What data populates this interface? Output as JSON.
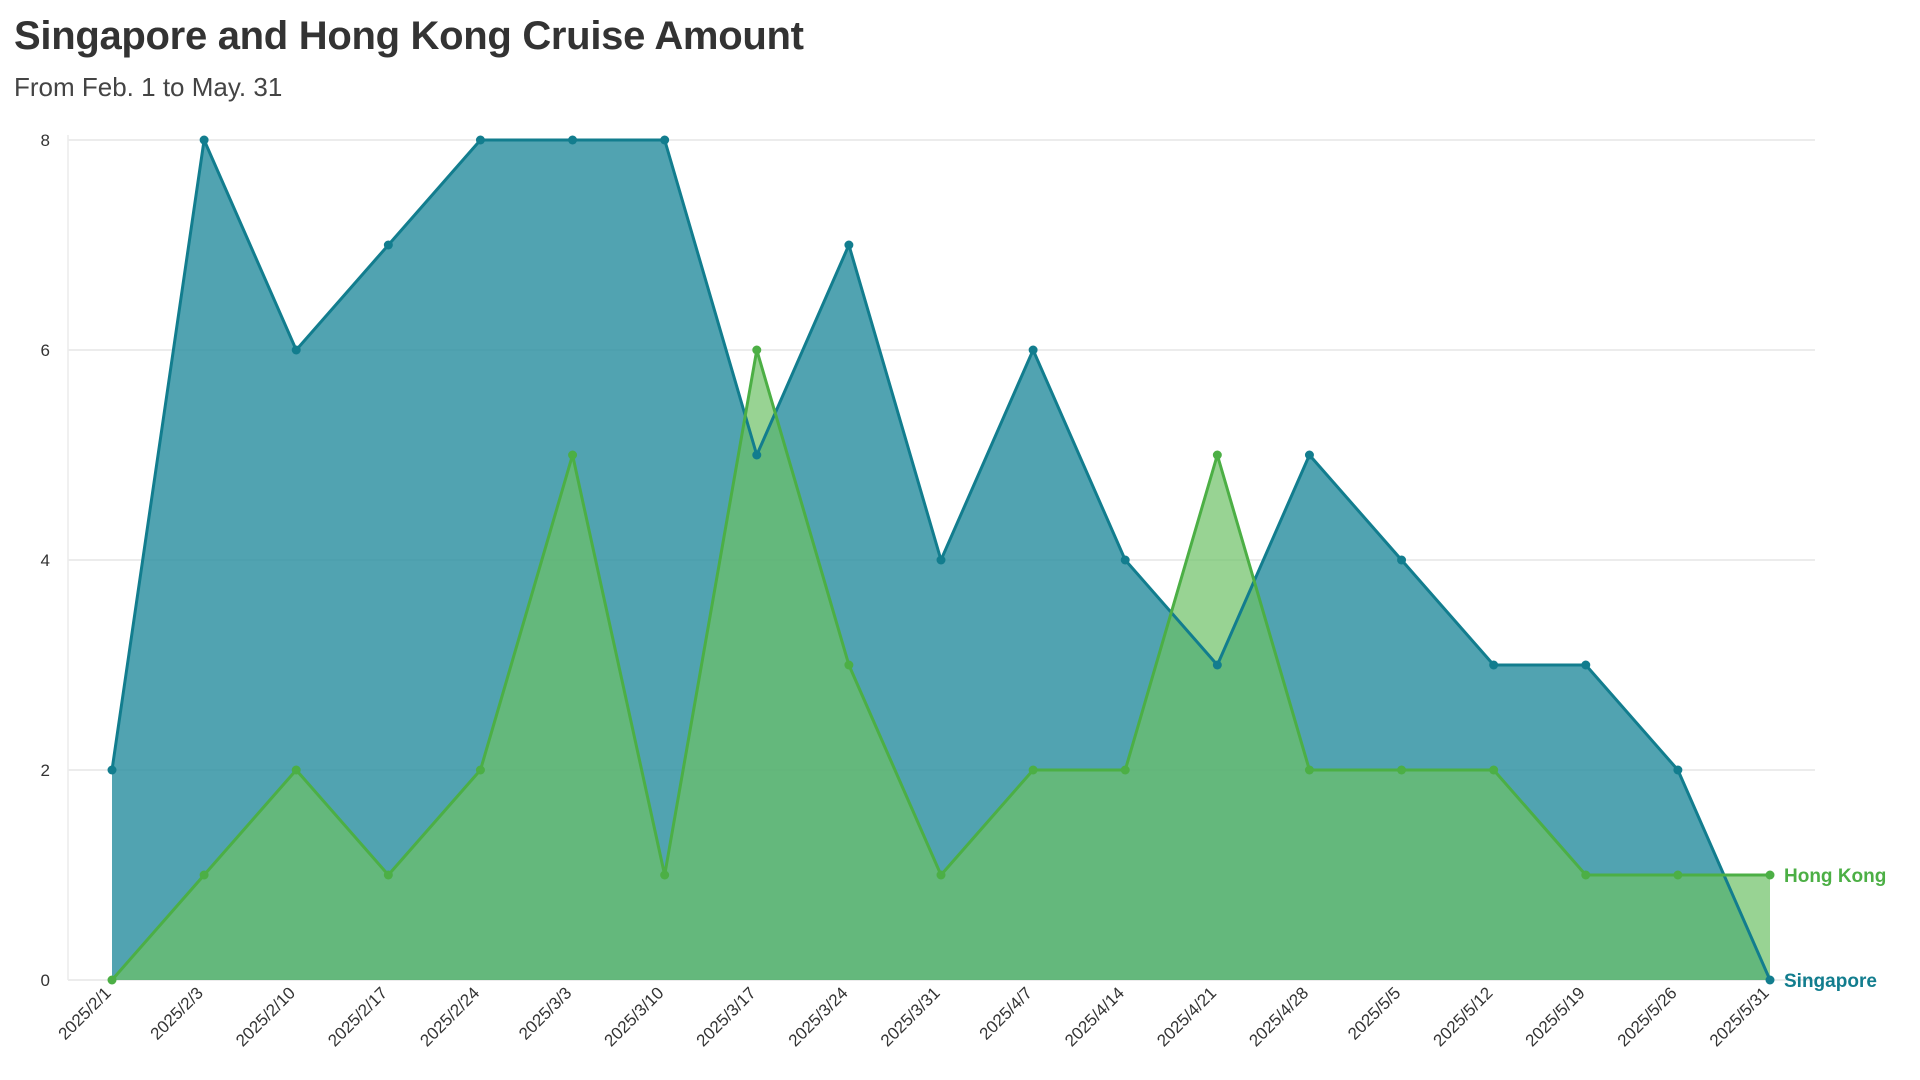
{
  "chart_data": {
    "type": "area",
    "title": "Singapore and Hong Kong Cruise Amount",
    "subtitle": "From Feb. 1 to May. 31",
    "xlabel": "",
    "ylabel": "",
    "categories": [
      "2025/2/1",
      "2025/2/3",
      "2025/2/10",
      "2025/2/17",
      "2025/2/24",
      "2025/3/3",
      "2025/3/10",
      "2025/3/17",
      "2025/3/24",
      "2025/3/31",
      "2025/4/7",
      "2025/4/14",
      "2025/4/21",
      "2025/4/28",
      "2025/5/5",
      "2025/5/12",
      "2025/5/19",
      "2025/5/26",
      "2025/5/31"
    ],
    "ylim": [
      0,
      8
    ],
    "yticks": [
      0,
      2,
      4,
      6,
      8
    ],
    "grid": true,
    "series": [
      {
        "name": "Singapore",
        "color": "#127d8e",
        "fill": "#2b8fa0",
        "values": [
          2,
          8,
          6,
          7,
          8,
          8,
          8,
          5,
          7,
          4,
          6,
          4,
          3,
          5,
          4,
          3,
          3,
          2,
          0
        ]
      },
      {
        "name": "Hong Kong",
        "color": "#4caf45",
        "fill": "#6cc065",
        "values": [
          0,
          1,
          2,
          1,
          2,
          5,
          1,
          6,
          3,
          1,
          2,
          2,
          5,
          2,
          2,
          2,
          1,
          1,
          1
        ]
      }
    ]
  }
}
